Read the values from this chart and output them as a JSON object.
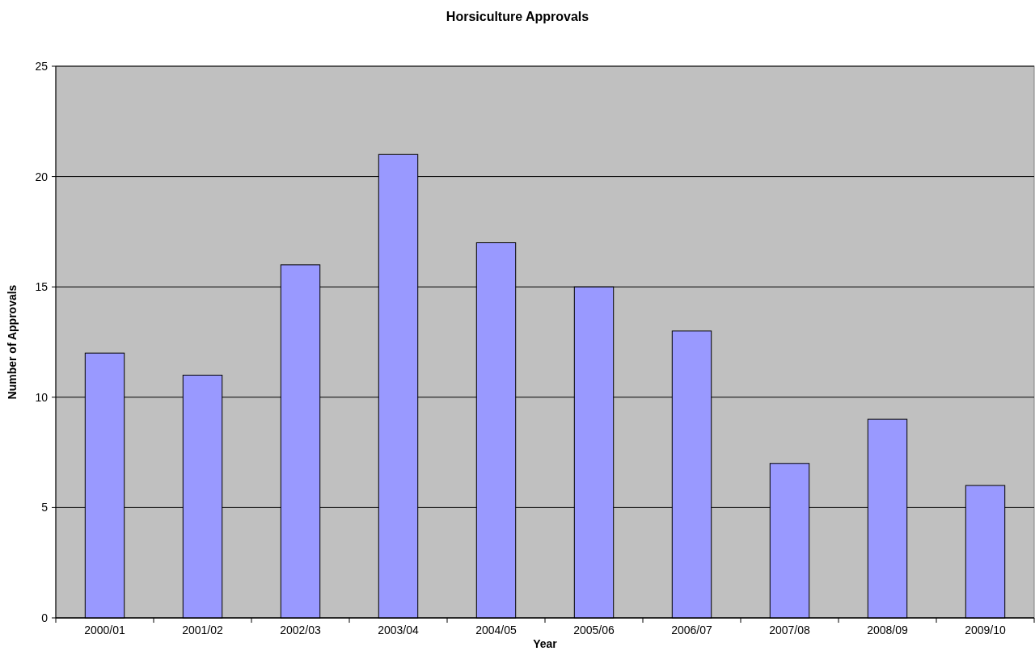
{
  "chart_data": {
    "type": "bar",
    "title": "Horsiculture Approvals",
    "xlabel": "Year",
    "ylabel": "Number of Approvals",
    "categories": [
      "2000/01",
      "2001/02",
      "2002/03",
      "2003/04",
      "2004/05",
      "2005/06",
      "2006/07",
      "2007/08",
      "2008/09",
      "2009/10"
    ],
    "values": [
      12,
      11,
      16,
      21,
      17,
      15,
      13,
      7,
      9,
      6
    ],
    "color": "#9999ff",
    "ylim": [
      0,
      25
    ],
    "yticks": [
      0,
      5,
      10,
      15,
      20,
      25
    ],
    "grid": "y"
  }
}
